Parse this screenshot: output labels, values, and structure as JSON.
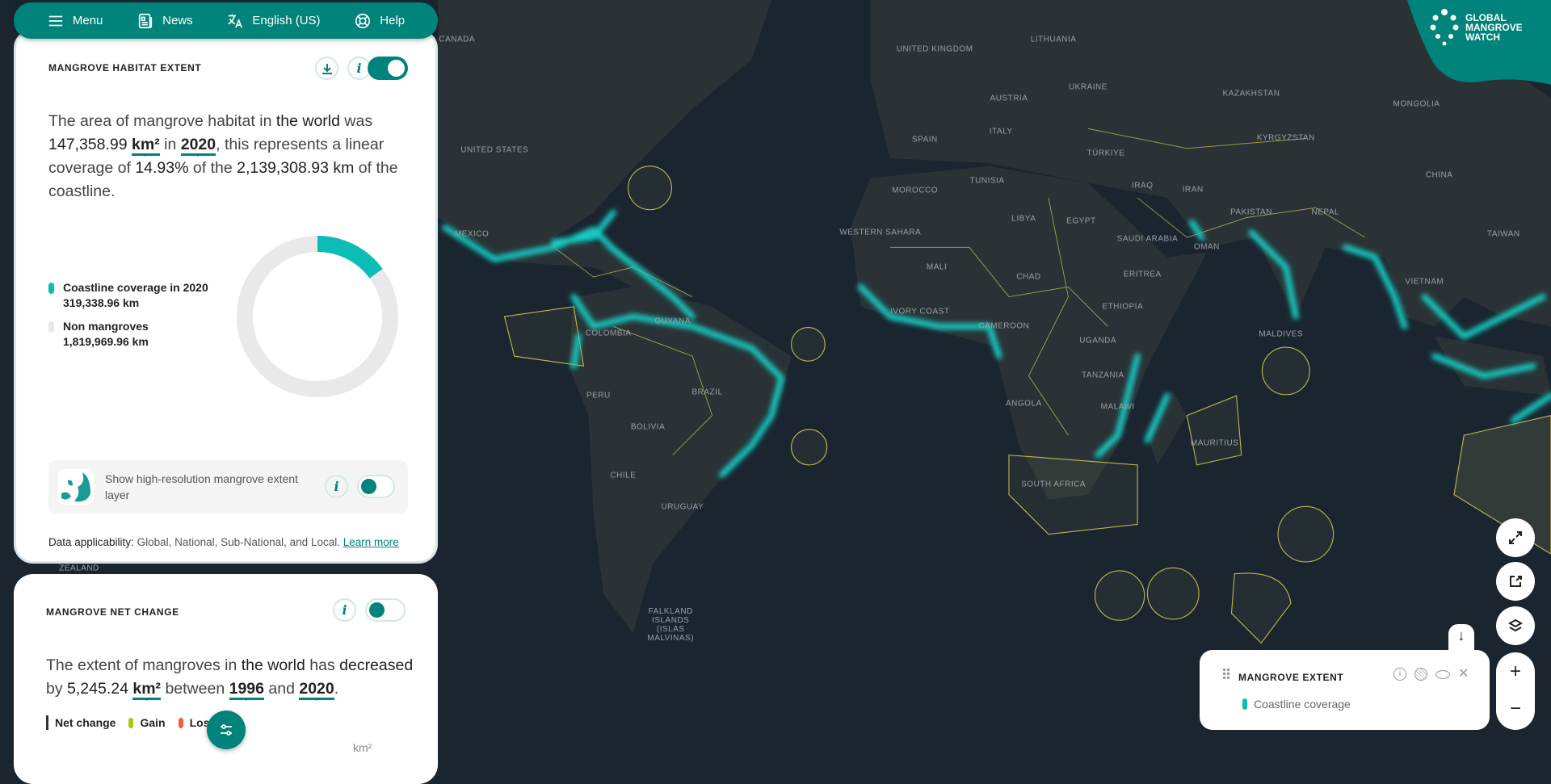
{
  "nav": {
    "menu": "Menu",
    "news": "News",
    "language": "English (US)",
    "help": "Help"
  },
  "habitat": {
    "title": "MANGROVE HABITAT EXTENT",
    "s1": "The area of mangrove habitat in ",
    "location": "the world",
    "s2": " was ",
    "area": "147,358.99",
    "unit": "km²",
    "s3": " in ",
    "year": "2020",
    "s4": ", this represents a linear coverage of ",
    "coverage": "14.93%",
    "s5": " of the ",
    "coastline": "2,139,308.93 km",
    "s6": " of the coastline.",
    "toggle_on": true,
    "legend": [
      {
        "label": "Coastline coverage in 2020",
        "value": "319,338.96  km",
        "color": "#0bbdb5"
      },
      {
        "label": "Non mangroves",
        "value": "1,819,969.96  km",
        "color": "#e9e9ec"
      }
    ],
    "hires_label": "Show high-resolution mangrove extent layer",
    "applicability_label": "Data applicability:",
    "applicability": " Global, National, Sub-National, and Local. ",
    "learn_more": "Learn more"
  },
  "net_change": {
    "title": "MANGROVE NET CHANGE",
    "s1": "The extent of mangroves in ",
    "location": "the world",
    "s2": " has ",
    "direction": "decreased",
    "s3": " by ",
    "amount": "5,245.24",
    "unit": "km²",
    "s4": " between ",
    "start": "1996",
    "s5": " and ",
    "end": "2020",
    "s6": ".",
    "legend": [
      {
        "label": "Net change",
        "color": "#333333"
      },
      {
        "label": "Gain",
        "color": "#a6cb10"
      },
      {
        "label": "Loss",
        "color": "#eb6240"
      }
    ],
    "axis_unit": "km²"
  },
  "logo": {
    "text": "GLOBAL MANGROVE WATCH",
    "color": "#00837a"
  },
  "layer_legend": {
    "title": "MANGROVE EXTENT",
    "item": "Coastline coverage",
    "color": "#0bbdb5"
  },
  "map_labels": [
    "CANADA",
    "UNITED KINGDOM",
    "LITHUANIA",
    "UKRAINE",
    "AUSTRIA",
    "KAZAKHSTAN",
    "MONGOLIA",
    "ITALY",
    "SPAIN",
    "KYRGYZSTAN",
    "TÜRKIYE",
    "UNITED STATES",
    "CHINA",
    "MOROCCO",
    "TUNISIA",
    "IRAQ",
    "IRAN",
    "PAKISTAN",
    "NEPAL",
    "MEXICO",
    "WESTERN SAHARA",
    "LIBYA",
    "EGYPT",
    "SAUDI ARABIA",
    "OMAN",
    "TAIWAN",
    "MALI",
    "CHAD",
    "ERITREA",
    "COLOMBIA",
    "GUYANA",
    "ETHIOPIA",
    "VIETNAM",
    "CAMEROON",
    "IVORY COAST",
    "UGANDA",
    "MALDIVES",
    "PERU",
    "BRAZIL",
    "TANZANIA",
    "ANGOLA",
    "BOLIVIA",
    "MALAWI",
    "MAURITIUS",
    "CHILE",
    "SOUTH AFRICA",
    "URUGUAY",
    "FALKLAND ISLANDS (ISLAS MALVINAS)",
    "ZEALAND"
  ]
}
